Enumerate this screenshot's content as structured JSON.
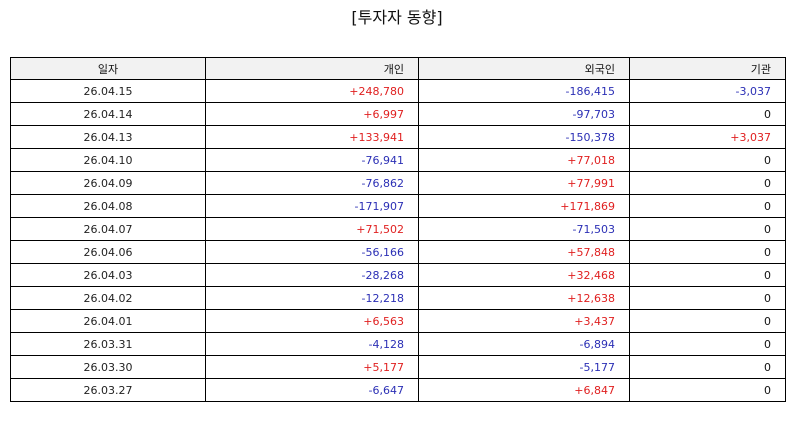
{
  "title": "[투자자 동향]",
  "columns": {
    "date": "일자",
    "individual": "개인",
    "foreign": "외국인",
    "institution": "기관"
  },
  "colors": {
    "positive": "#e02020",
    "negative": "#2b2fb5",
    "zero": "#111111",
    "header_bg": "#f2f2f2"
  },
  "rows": [
    {
      "date": "26.04.15",
      "individual": "+248,780",
      "foreign": "-186,415",
      "institution": "-3,037"
    },
    {
      "date": "26.04.14",
      "individual": "+6,997",
      "foreign": "-97,703",
      "institution": "0"
    },
    {
      "date": "26.04.13",
      "individual": "+133,941",
      "foreign": "-150,378",
      "institution": "+3,037"
    },
    {
      "date": "26.04.10",
      "individual": "-76,941",
      "foreign": "+77,018",
      "institution": "0"
    },
    {
      "date": "26.04.09",
      "individual": "-76,862",
      "foreign": "+77,991",
      "institution": "0"
    },
    {
      "date": "26.04.08",
      "individual": "-171,907",
      "foreign": "+171,869",
      "institution": "0"
    },
    {
      "date": "26.04.07",
      "individual": "+71,502",
      "foreign": "-71,503",
      "institution": "0"
    },
    {
      "date": "26.04.06",
      "individual": "-56,166",
      "foreign": "+57,848",
      "institution": "0"
    },
    {
      "date": "26.04.03",
      "individual": "-28,268",
      "foreign": "+32,468",
      "institution": "0"
    },
    {
      "date": "26.04.02",
      "individual": "-12,218",
      "foreign": "+12,638",
      "institution": "0"
    },
    {
      "date": "26.04.01",
      "individual": "+6,563",
      "foreign": "+3,437",
      "institution": "0"
    },
    {
      "date": "26.03.31",
      "individual": "-4,128",
      "foreign": "-6,894",
      "institution": "0"
    },
    {
      "date": "26.03.30",
      "individual": "+5,177",
      "foreign": "-5,177",
      "institution": "0"
    },
    {
      "date": "26.03.27",
      "individual": "-6,647",
      "foreign": "+6,847",
      "institution": "0"
    }
  ]
}
